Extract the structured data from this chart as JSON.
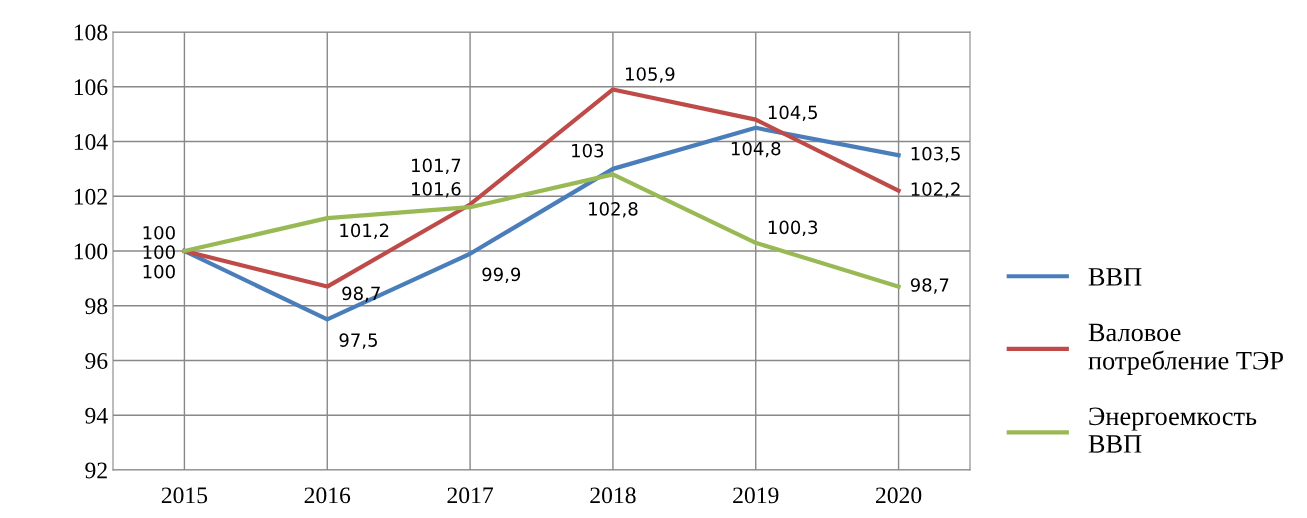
{
  "chart_data": {
    "type": "line",
    "categories": [
      "2015",
      "2016",
      "2017",
      "2018",
      "2019",
      "2020"
    ],
    "series": [
      {
        "name": "ВВП",
        "color": "#4a7ebb",
        "values": [
          100,
          97.5,
          99.9,
          103,
          104.5,
          103.5
        ],
        "value_labels": [
          "100",
          "97,5",
          "99,9",
          "103",
          "104,5",
          "103,5"
        ]
      },
      {
        "name": "Валовое потребление ТЭР",
        "color": "#be4b48",
        "values": [
          100,
          98.7,
          101.7,
          105.9,
          104.8,
          102.2
        ],
        "value_labels": [
          "100",
          "98,7",
          "101,7",
          "105,9",
          "104,8",
          "102,2"
        ]
      },
      {
        "name": "Энергоемкость ВВП",
        "color": "#98b954",
        "values": [
          100,
          101.2,
          101.6,
          102.8,
          100.3,
          98.7
        ],
        "value_labels": [
          "100",
          "101,2",
          "101,6",
          "102,8",
          "100,3",
          "98,7"
        ]
      }
    ],
    "ylim": [
      92,
      108
    ],
    "yticks": [
      92,
      94,
      96,
      98,
      100,
      102,
      104,
      106,
      108
    ],
    "grid": true,
    "legend": "right",
    "marker": "none",
    "line_style": "solid"
  }
}
